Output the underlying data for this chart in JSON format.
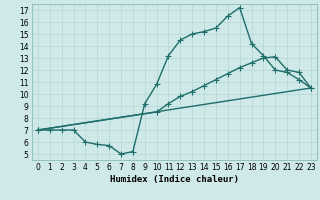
{
  "xlabel": "Humidex (Indice chaleur)",
  "bg_color": "#cfe9e9",
  "line_color": "#1e6e6a",
  "grid_color": "#b5d5d5",
  "xlim": [
    -0.5,
    23.5
  ],
  "ylim": [
    4.5,
    17.5
  ],
  "xticks": [
    0,
    1,
    2,
    3,
    4,
    5,
    6,
    7,
    8,
    9,
    10,
    11,
    12,
    13,
    14,
    15,
    16,
    17,
    18,
    19,
    20,
    21,
    22,
    23
  ],
  "yticks": [
    5,
    6,
    7,
    8,
    9,
    10,
    11,
    12,
    13,
    14,
    15,
    16,
    17
  ],
  "line1_x": [
    0,
    1,
    2,
    3,
    4,
    5,
    6,
    7,
    8,
    9,
    10,
    11,
    12,
    13,
    14,
    15,
    16,
    17,
    18,
    19,
    20,
    21,
    22,
    23
  ],
  "line1_y": [
    7.0,
    7.0,
    7.0,
    7.0,
    6.0,
    5.8,
    5.7,
    5.0,
    5.2,
    9.2,
    10.8,
    13.2,
    14.5,
    15.0,
    15.2,
    15.5,
    16.5,
    17.2,
    14.2,
    13.2,
    12.0,
    11.8,
    11.2,
    10.5
  ],
  "line2_x": [
    0,
    10,
    11,
    12,
    13,
    14,
    15,
    16,
    17,
    18,
    19,
    20,
    21,
    22,
    23
  ],
  "line2_y": [
    7.0,
    8.5,
    9.2,
    9.8,
    10.2,
    10.7,
    11.2,
    11.7,
    12.2,
    12.6,
    13.0,
    13.1,
    12.0,
    11.8,
    10.5
  ],
  "line3_x": [
    0,
    23
  ],
  "line3_y": [
    7.0,
    10.5
  ],
  "markersize": 2.5,
  "linewidth": 1.0,
  "tick_fontsize": 5.5,
  "label_fontsize": 6.5
}
